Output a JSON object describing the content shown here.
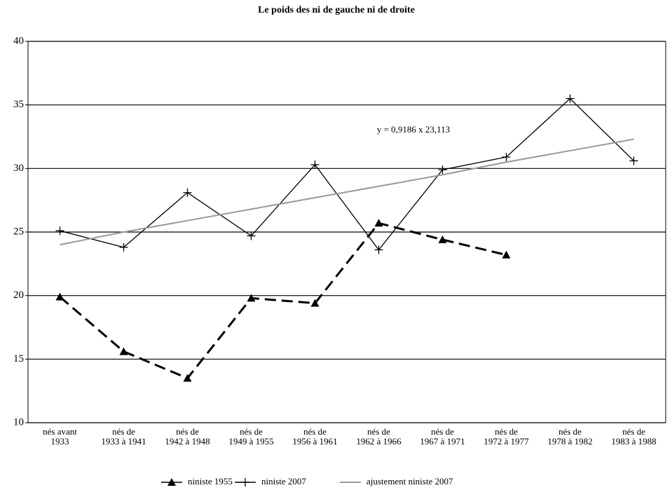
{
  "chart_data": {
    "type": "line",
    "title": "Le poids des ni de gauche ni de droite",
    "annotation": "y = 0,9186 x 23,113",
    "categories": [
      "nés avant\n1933",
      "nés de\n1933 à 1941",
      "nés de\n1942 à 1948",
      "nés de\n1949 à 1955",
      "nés de\n1956 à 1961",
      "nés de\n1962 à 1966",
      "nés de\n1967 à 1971",
      "nés de\n1972 à 1977",
      "nés de\n1978 à 1982",
      "nés de\n1983 à 1988"
    ],
    "series": [
      {
        "name": "niniste 1955",
        "color": "#000000",
        "dashed": true,
        "marker": "triangle",
        "values": [
          19.9,
          15.6,
          13.5,
          19.8,
          19.4,
          25.7,
          24.4,
          23.2,
          null,
          null
        ]
      },
      {
        "name": "niniste 2007",
        "color": "#000000",
        "dashed": false,
        "marker": "plus",
        "values": [
          25.1,
          23.8,
          28.1,
          24.7,
          30.3,
          23.6,
          29.9,
          30.9,
          35.5,
          30.6
        ]
      },
      {
        "name": "ajustement niniste 2007",
        "color": "#999999",
        "dashed": false,
        "marker": "none",
        "values": [
          24.0,
          25.0,
          25.9,
          26.8,
          27.7,
          28.6,
          29.5,
          30.5,
          31.4,
          32.3
        ]
      }
    ],
    "ylim": [
      10,
      40
    ],
    "yticks": [
      10,
      15,
      20,
      25,
      30,
      35,
      40
    ],
    "grid": true,
    "legend": "bottom"
  }
}
